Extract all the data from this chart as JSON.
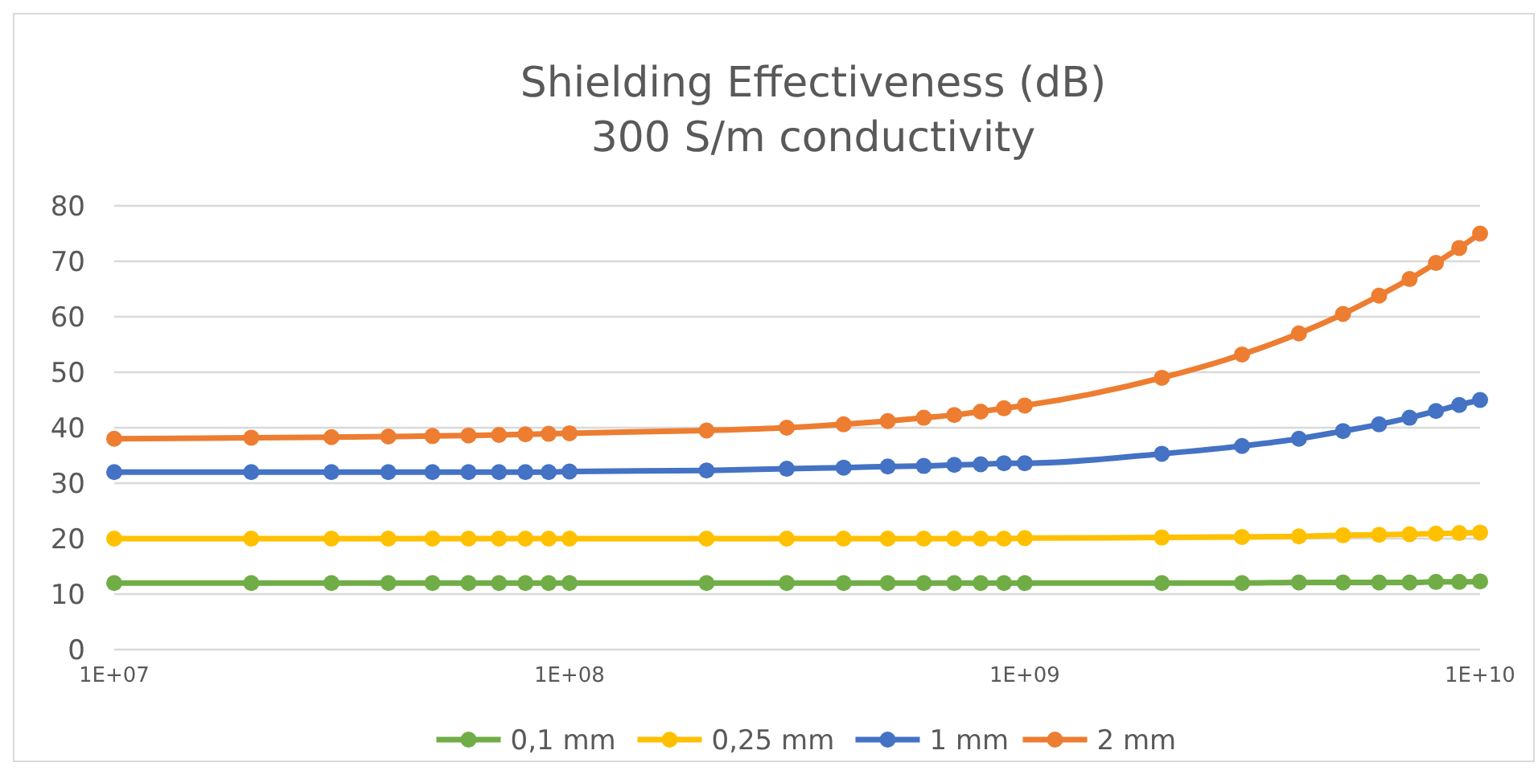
{
  "chart_data": {
    "type": "line",
    "title": "Shielding Effectiveness (dB)",
    "subtitle": "300 S/m conductivity",
    "x": [
      10000000.0,
      20000000.0,
      30000000.0,
      40000000.0,
      50000000.0,
      60000000.0,
      70000000.0,
      80000000.0,
      90000000.0,
      100000000.0,
      200000000.0,
      300000000.0,
      400000000.0,
      500000000.0,
      600000000.0,
      700000000.0,
      800000000.0,
      900000000.0,
      1000000000.0,
      2000000000.0,
      3000000000.0,
      4000000000.0,
      5000000000.0,
      6000000000.0,
      7000000000.0,
      8000000000.0,
      9000000000.0,
      10000000000.0
    ],
    "series": [
      {
        "name": "0,1 mm",
        "color": "#70ad47",
        "values": [
          12,
          12,
          12,
          12,
          12,
          12,
          12,
          12,
          12,
          12,
          12,
          12,
          12,
          12,
          12,
          12,
          12,
          12,
          12,
          12,
          12,
          12.1,
          12.1,
          12.1,
          12.1,
          12.2,
          12.2,
          12.3
        ]
      },
      {
        "name": "0,25 mm",
        "color": "#ffc000",
        "values": [
          20,
          20,
          20,
          20,
          20,
          20,
          20,
          20,
          20,
          20,
          20,
          20,
          20,
          20,
          20,
          20,
          20,
          20,
          20.1,
          20.2,
          20.3,
          20.4,
          20.6,
          20.7,
          20.8,
          20.9,
          21,
          21.1
        ]
      },
      {
        "name": "1 mm",
        "color": "#4472c4",
        "values": [
          32,
          32,
          32,
          32,
          32,
          32,
          32,
          32,
          32,
          32.1,
          32.3,
          32.6,
          32.8,
          33,
          33.1,
          33.3,
          33.4,
          33.6,
          33.6,
          35.3,
          36.7,
          38,
          39.4,
          40.6,
          41.8,
          43,
          44.1,
          45
        ]
      },
      {
        "name": "2 mm",
        "color": "#ed7d31",
        "values": [
          38,
          38.2,
          38.3,
          38.4,
          38.5,
          38.6,
          38.7,
          38.8,
          38.9,
          39,
          39.5,
          40,
          40.6,
          41.2,
          41.8,
          42.3,
          42.9,
          43.5,
          44,
          49,
          53.2,
          57,
          60.5,
          63.8,
          66.8,
          69.7,
          72.4,
          75
        ]
      }
    ],
    "log": "x",
    "xlim": [
      10000000.0,
      10000000000.0
    ],
    "xticks": [
      {
        "value": 10000000.0,
        "label": "1E+07"
      },
      {
        "value": 100000000.0,
        "label": "1E+08"
      },
      {
        "value": 1000000000.0,
        "label": "1E+09"
      },
      {
        "value": 10000000000.0,
        "label": "1E+10"
      }
    ],
    "ylim": [
      0,
      80
    ],
    "yticks": [
      0,
      10,
      20,
      30,
      40,
      50,
      60,
      70,
      80
    ],
    "grid": "y",
    "legend": "bottom",
    "marker": "circle",
    "line_style": "solid"
  }
}
